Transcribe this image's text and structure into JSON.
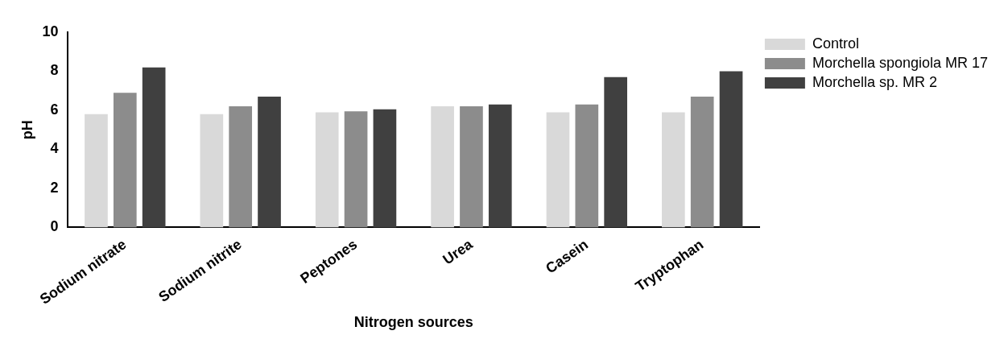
{
  "chart_data": {
    "type": "bar",
    "xlabel": "Nitrogen sources",
    "ylabel": "pH",
    "categories": [
      "Sodium nitrate",
      "Sodium nitrite",
      "Peptones",
      "Urea",
      "Casein",
      "Tryptophan"
    ],
    "series": [
      {
        "name": "Control",
        "color": "#d9d9d9",
        "values": [
          5.8,
          5.8,
          5.9,
          6.2,
          5.9,
          5.9
        ]
      },
      {
        "name": "Morchella spongiola MR 17",
        "color": "#8c8c8c",
        "values": [
          6.9,
          6.2,
          5.95,
          6.2,
          6.3,
          6.7
        ]
      },
      {
        "name": "Morchella sp. MR 2",
        "color": "#404040",
        "values": [
          8.2,
          6.7,
          6.05,
          6.3,
          7.7,
          8.0
        ]
      }
    ],
    "ylim": [
      0,
      10
    ],
    "yticks": [
      0,
      2,
      4,
      6,
      8,
      10
    ],
    "grid": false,
    "legend": "top right"
  }
}
